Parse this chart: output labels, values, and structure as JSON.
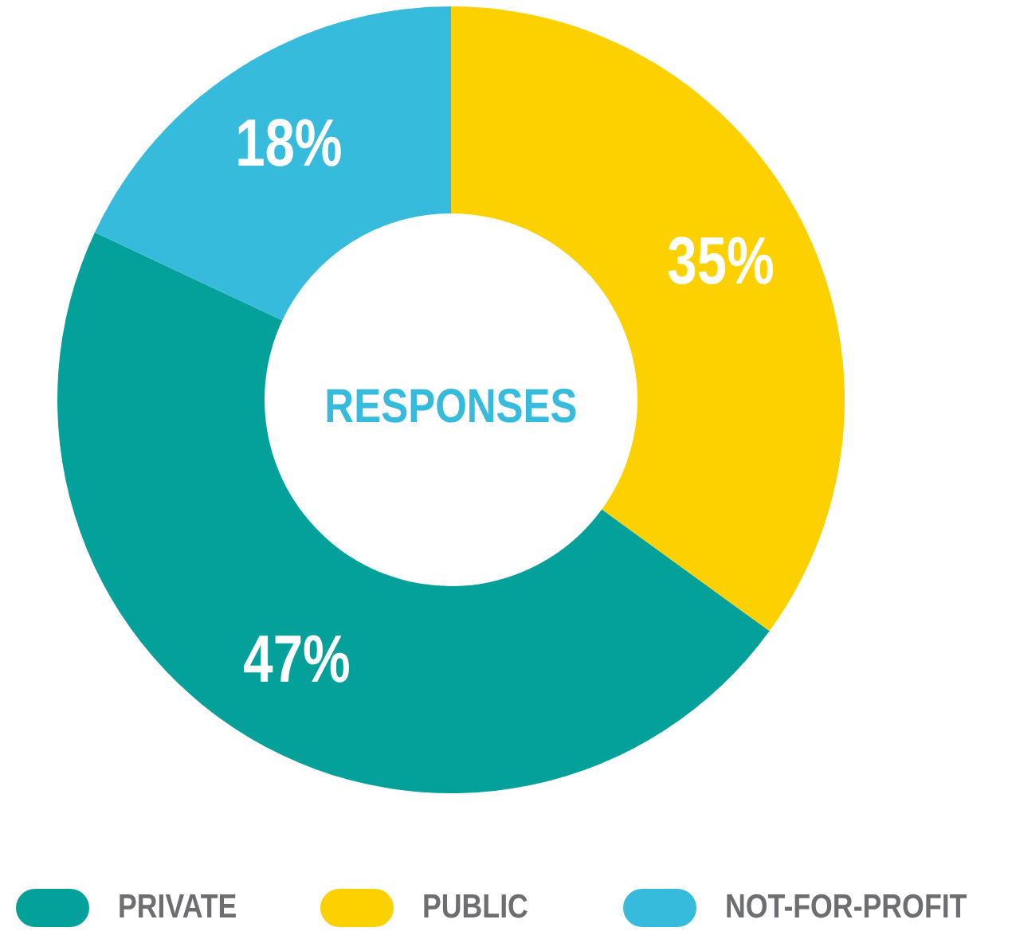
{
  "chart_data": {
    "type": "donut",
    "title": "RESPONSES",
    "categories": [
      "PRIVATE",
      "PUBLIC",
      "NOT-FOR-PROFIT"
    ],
    "values": [
      47,
      35,
      18
    ],
    "colors": [
      "#04a19b",
      "#fdd000",
      "#36bbdd"
    ],
    "value_labels": [
      "47%",
      "35%",
      "18%"
    ],
    "legend": "bottom"
  }
}
